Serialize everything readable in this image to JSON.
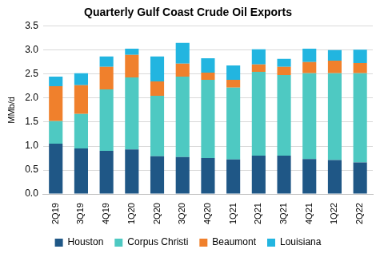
{
  "chart_data": {
    "type": "bar",
    "title": "Quarterly Gulf Coast Crude Oil Exports",
    "y_label": "MMb/d",
    "categories": [
      "2Q19",
      "3Q19",
      "4Q19",
      "1Q20",
      "2Q20",
      "3Q20",
      "4Q20",
      "1Q21",
      "2Q21",
      "3Q21",
      "4Q21",
      "1Q22",
      "2Q22"
    ],
    "series": [
      {
        "name": "Houston",
        "color": "#1f5786",
        "values": [
          1.05,
          0.95,
          0.9,
          0.93,
          0.79,
          0.77,
          0.75,
          0.72,
          0.8,
          0.8,
          0.73,
          0.71,
          0.66
        ]
      },
      {
        "name": "Corpus Christi",
        "color": "#4ec9c2",
        "values": [
          0.47,
          0.72,
          1.28,
          1.5,
          1.26,
          1.68,
          1.63,
          1.5,
          1.75,
          1.68,
          1.79,
          1.81,
          1.86
        ]
      },
      {
        "name": "Beaumont",
        "color": "#f0802c",
        "values": [
          0.73,
          0.6,
          0.47,
          0.47,
          0.3,
          0.27,
          0.15,
          0.16,
          0.15,
          0.17,
          0.23,
          0.26,
          0.21
        ]
      },
      {
        "name": "Louisiana",
        "color": "#22b5e0",
        "values": [
          0.2,
          0.25,
          0.22,
          0.13,
          0.52,
          0.43,
          0.3,
          0.3,
          0.32,
          0.17,
          0.28,
          0.22,
          0.28
        ]
      }
    ],
    "stacked": true,
    "ylim": [
      0,
      3.5
    ],
    "yticks": [
      {
        "value": 0,
        "label": "0.0"
      },
      {
        "value": 0.5,
        "label": "0.5"
      },
      {
        "value": 1,
        "label": "1.0"
      },
      {
        "value": 1.5,
        "label": "1.5"
      },
      {
        "value": 2,
        "label": "2.0"
      },
      {
        "value": 2.5,
        "label": "2.5"
      },
      {
        "value": 3,
        "label": "3.0"
      },
      {
        "value": 3.5,
        "label": "3.5"
      }
    ],
    "grid": true,
    "legend": "bottom"
  }
}
